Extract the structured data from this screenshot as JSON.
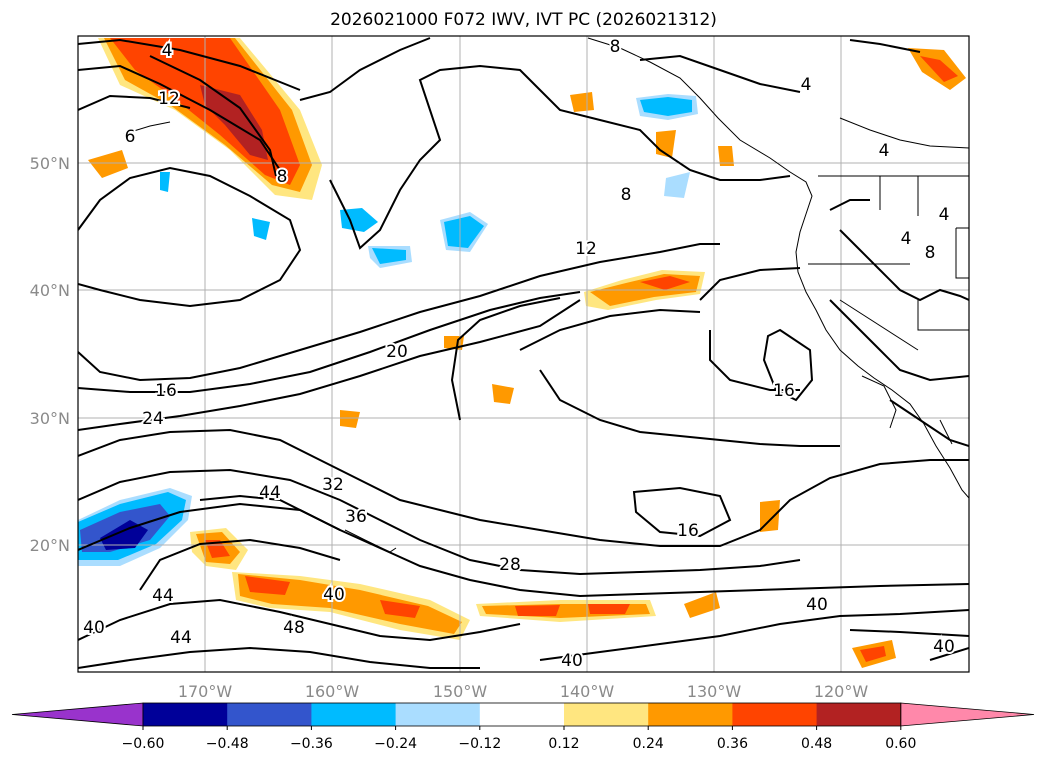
{
  "title": "2026021000 F072 IWV, IVT PC (2026021312)",
  "lat_ticks": [
    "20°N",
    "30°N",
    "40°N",
    "50°N"
  ],
  "lon_ticks": [
    "170°W",
    "160°W",
    "150°W",
    "140°W",
    "130°W",
    "120°W"
  ],
  "colorbar": {
    "labels": [
      "−0.60",
      "−0.48",
      "−0.36",
      "−0.24",
      "−0.12",
      "0.12",
      "0.24",
      "0.36",
      "0.48",
      "0.60"
    ],
    "colors": [
      "#9933cc",
      "#000099",
      "#3355cc",
      "#00bbff",
      "#aaddff",
      "#ffffff",
      "#ffe680",
      "#ff9900",
      "#ff4400",
      "#b22222",
      "#ff88aa"
    ]
  },
  "contour_labels": [
    "4",
    "12",
    "8",
    "6",
    "8",
    "8",
    "4",
    "4",
    "8",
    "4",
    "4",
    "12",
    "20",
    "16",
    "24",
    "16",
    "44",
    "32",
    "36",
    "28",
    "16",
    "40",
    "40",
    "48",
    "44",
    "44",
    "40",
    "40",
    "40"
  ]
}
